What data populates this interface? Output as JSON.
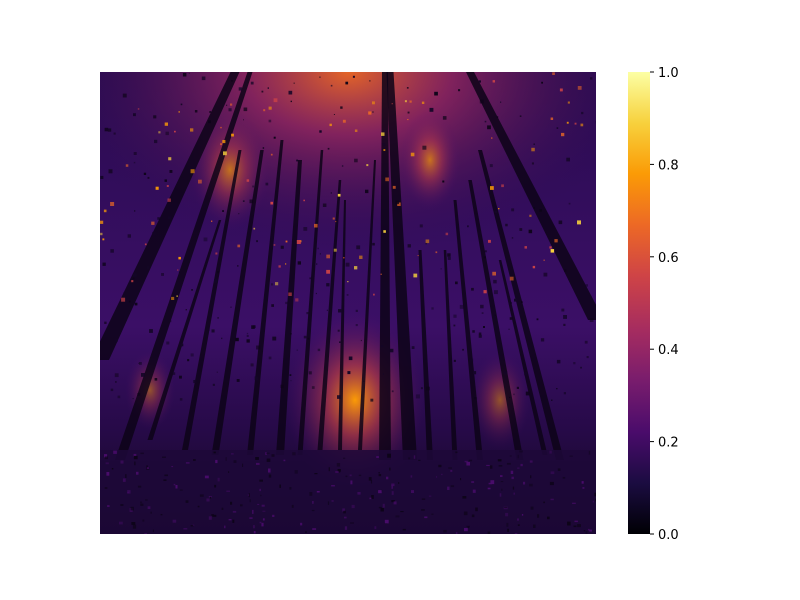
{
  "chart_data": {
    "type": "heatmap",
    "title": "",
    "xlabel": "",
    "ylabel": "",
    "colormap": "inferno",
    "image_description": "pseudocolor image of a forest seen looking upward: dark tall trunks, bright canopy gaps near the top and a bright glow near the center bottom, dark ground vegetation",
    "axes_visible": false,
    "colorbar": {
      "range": [
        0.0,
        1.0
      ],
      "ticks": [
        0.0,
        0.2,
        0.4,
        0.6,
        0.8,
        1.0
      ],
      "tick_labels": [
        "0.0",
        "0.2",
        "0.4",
        "0.6",
        "0.8",
        "1.0"
      ],
      "position": "right"
    },
    "colors": {
      "inferno_0": "#000004",
      "inferno_1": "#1b0c41",
      "inferno_2": "#4a0c6b",
      "inferno_3": "#781c6d",
      "inferno_4": "#a52c60",
      "inferno_5": "#cf4446",
      "inferno_6": "#ed6925",
      "inferno_7": "#fb9b06",
      "inferno_8": "#f7d13d",
      "inferno_9": "#fcffa4"
    }
  }
}
